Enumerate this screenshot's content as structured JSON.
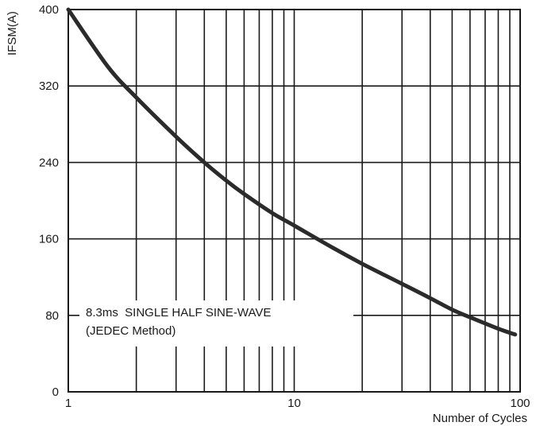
{
  "chart_data": {
    "type": "line",
    "xscale": "log",
    "xlim": [
      1,
      100
    ],
    "ylim": [
      0,
      400
    ],
    "xlabel": "Number of Cycles",
    "ylabel": "IFSM(A)",
    "x_ticks": [
      1,
      10,
      100
    ],
    "x_tick_labels": [
      "1",
      "10",
      "100"
    ],
    "y_ticks": [
      0,
      80,
      160,
      240,
      320,
      400
    ],
    "y_tick_labels": [
      "0",
      "80",
      "160",
      "240",
      "320",
      "400"
    ],
    "grid": true,
    "annotation": {
      "line1": "8.3ms  SINGLE HALF SINE-WAVE",
      "line2": "(JEDEC Method)"
    },
    "series": [
      {
        "x": [
          1,
          1.5,
          2,
          3,
          4,
          5,
          6,
          8,
          10,
          15,
          20,
          30,
          40,
          50,
          60,
          80,
          95
        ],
        "values": [
          400,
          340,
          308,
          267,
          240,
          221,
          207,
          187,
          174,
          150,
          134,
          113,
          98,
          86,
          78,
          66,
          60
        ]
      }
    ],
    "colors": {
      "line": "#2b2b2b",
      "grid": "#1a1a1a",
      "frame": "#1a1a1a"
    }
  }
}
